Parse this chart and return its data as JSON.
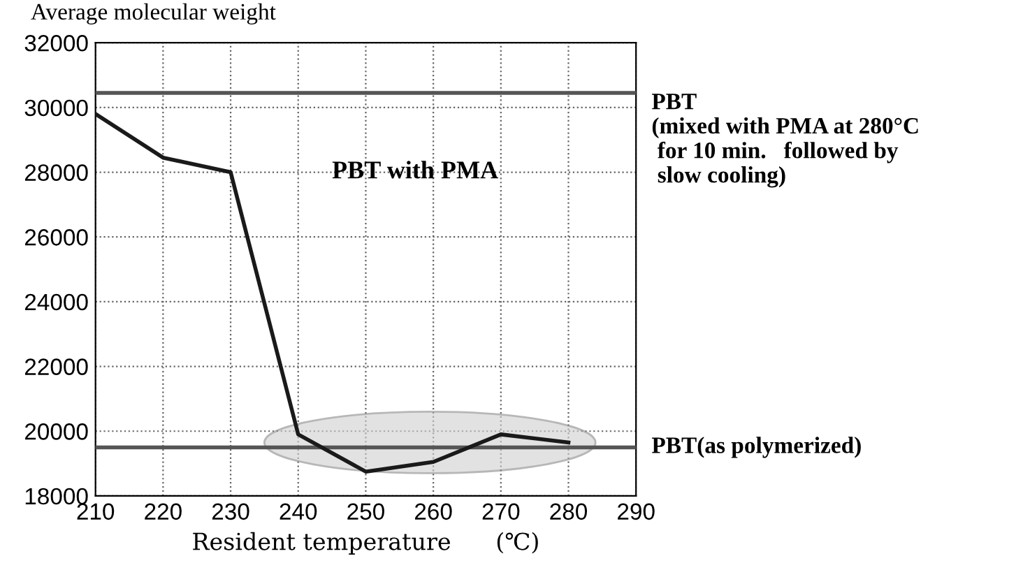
{
  "chart_data": {
    "type": "line",
    "ylabel": "Average molecular weight",
    "xlabel": "Resident temperature      (℃)",
    "x": [
      210,
      220,
      230,
      240,
      250,
      260,
      270,
      280
    ],
    "series": [
      {
        "name": "PBT with PMA",
        "color": "#1a1a1a",
        "values": [
          29800,
          28450,
          28000,
          19900,
          18750,
          19050,
          19900,
          19650
        ]
      }
    ],
    "xlim": [
      210,
      290
    ],
    "xticks": [
      210,
      220,
      230,
      240,
      250,
      260,
      270,
      280,
      290
    ],
    "ylim": [
      18000,
      32000
    ],
    "yticks": [
      18000,
      20000,
      22000,
      24000,
      26000,
      28000,
      30000,
      32000
    ],
    "grid": true,
    "marker": "none",
    "line_style": "solid",
    "ref_lines": [
      {
        "axis": "y",
        "value": 30450,
        "label": "PBT\n(mixed with PMA at 280°C\n for 10 min.   followed by\n slow cooling)",
        "color": "#555555"
      },
      {
        "axis": "y",
        "value": 19500,
        "label": "PBT(as polymerized)",
        "color": "#555555"
      }
    ]
  }
}
